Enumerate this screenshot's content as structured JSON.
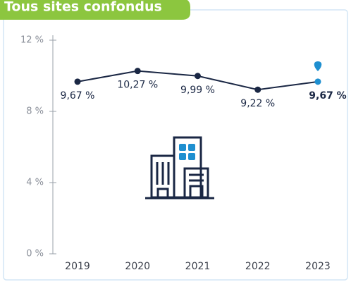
{
  "chart_data": {
    "type": "line",
    "title": "Tous sites confondus",
    "categories": [
      "2019",
      "2020",
      "2021",
      "2022",
      "2023"
    ],
    "series": [
      {
        "values": [
          9.67,
          10.27,
          9.99,
          9.22,
          9.67
        ],
        "value_labels": [
          "9,67 %",
          "10,27 %",
          "9,99 %",
          "9,22 %",
          "9,67 %"
        ],
        "color": "#1a2744",
        "point_colors": [
          "#1a2744",
          "#1a2744",
          "#1a2744",
          "#1a2744",
          "#1e8fd0"
        ]
      }
    ],
    "ylim": [
      0,
      12
    ],
    "yticks": [
      {
        "value": 0,
        "label": "0 %"
      },
      {
        "value": 4,
        "label": "4 %"
      },
      {
        "value": 8,
        "label": "8 %"
      },
      {
        "value": 12,
        "label": "12 %"
      }
    ]
  }
}
